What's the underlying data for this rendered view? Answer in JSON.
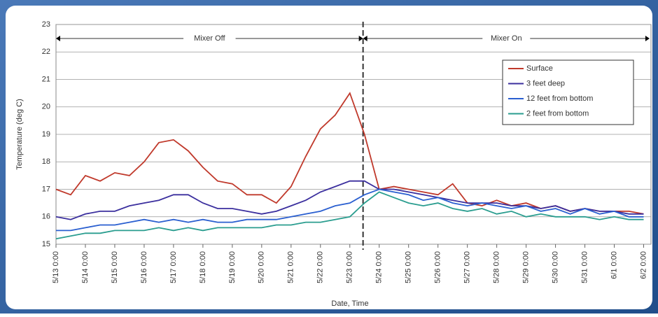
{
  "chart_data": {
    "type": "line",
    "xlabel": "Date, Time",
    "ylabel": "Temperature (deg C)",
    "annotations": [
      {
        "text": "Mixer Off",
        "x0": 0,
        "x1": 10.45
      },
      {
        "text": "Mixer On",
        "x0": 10.45,
        "x1": 20.2
      }
    ],
    "x": [
      0,
      0.5,
      1,
      1.5,
      2,
      2.5,
      3,
      3.5,
      4,
      4.5,
      5,
      5.5,
      6,
      6.5,
      7,
      7.5,
      8,
      8.5,
      9,
      9.5,
      10,
      10.5,
      11,
      11.5,
      12,
      12.5,
      13,
      13.5,
      14,
      14.5,
      15,
      15.5,
      16,
      16.5,
      17,
      17.5,
      18,
      18.5,
      19,
      19.5,
      20
    ],
    "series": [
      {
        "name": "Surface",
        "color": "#c0392b",
        "values": [
          17.0,
          16.8,
          17.5,
          17.3,
          17.6,
          17.5,
          18.0,
          18.7,
          18.8,
          18.4,
          17.8,
          17.3,
          17.2,
          16.8,
          16.8,
          16.5,
          17.1,
          18.2,
          19.2,
          19.7,
          20.5,
          19.0,
          17.0,
          17.1,
          17.0,
          16.9,
          16.8,
          17.2,
          16.5,
          16.4,
          16.6,
          16.4,
          16.5,
          16.3,
          16.4,
          16.2,
          16.3,
          16.2,
          16.2,
          16.2,
          16.1
        ]
      },
      {
        "name": "3 feet deep",
        "color": "#3b2f9e",
        "values": [
          16.0,
          15.9,
          16.1,
          16.2,
          16.2,
          16.4,
          16.5,
          16.6,
          16.8,
          16.8,
          16.5,
          16.3,
          16.3,
          16.2,
          16.1,
          16.2,
          16.4,
          16.6,
          16.9,
          17.1,
          17.3,
          17.3,
          17.0,
          17.0,
          16.9,
          16.8,
          16.7,
          16.6,
          16.5,
          16.5,
          16.5,
          16.4,
          16.4,
          16.3,
          16.4,
          16.2,
          16.3,
          16.2,
          16.2,
          16.1,
          16.1
        ]
      },
      {
        "name": "12 feet from bottom",
        "color": "#2a5fd0",
        "values": [
          15.5,
          15.5,
          15.6,
          15.7,
          15.7,
          15.8,
          15.9,
          15.8,
          15.9,
          15.8,
          15.9,
          15.8,
          15.8,
          15.9,
          15.9,
          15.9,
          16.0,
          16.1,
          16.2,
          16.4,
          16.5,
          16.8,
          17.0,
          16.9,
          16.8,
          16.6,
          16.7,
          16.5,
          16.4,
          16.5,
          16.4,
          16.3,
          16.4,
          16.2,
          16.3,
          16.1,
          16.3,
          16.1,
          16.2,
          16.0,
          16.0
        ]
      },
      {
        "name": "2 feet from bottom",
        "color": "#2a9d8f",
        "values": [
          15.2,
          15.3,
          15.4,
          15.4,
          15.5,
          15.5,
          15.5,
          15.6,
          15.5,
          15.6,
          15.5,
          15.6,
          15.6,
          15.6,
          15.6,
          15.7,
          15.7,
          15.8,
          15.8,
          15.9,
          16.0,
          16.5,
          16.9,
          16.7,
          16.5,
          16.4,
          16.5,
          16.3,
          16.2,
          16.3,
          16.1,
          16.2,
          16.0,
          16.1,
          16.0,
          16.0,
          16.0,
          15.9,
          16.0,
          15.9,
          15.9
        ]
      }
    ],
    "xlim": [
      0,
      20.25
    ],
    "xticks": [
      {
        "value": 0,
        "label": "5/13 0:00"
      },
      {
        "value": 1,
        "label": "5/14 0:00"
      },
      {
        "value": 2,
        "label": "5/15 0:00"
      },
      {
        "value": 3,
        "label": "5/16 0:00"
      },
      {
        "value": 4,
        "label": "5/17 0:00"
      },
      {
        "value": 5,
        "label": "5/18 0:00"
      },
      {
        "value": 6,
        "label": "5/19 0:00"
      },
      {
        "value": 7,
        "label": "5/20 0:00"
      },
      {
        "value": 8,
        "label": "5/21 0:00"
      },
      {
        "value": 9,
        "label": "5/22 0:00"
      },
      {
        "value": 10,
        "label": "5/23 0:00"
      },
      {
        "value": 11,
        "label": "5/24 0:00"
      },
      {
        "value": 12,
        "label": "5/25 0:00"
      },
      {
        "value": 13,
        "label": "5/26 0:00"
      },
      {
        "value": 14,
        "label": "5/27 0:00"
      },
      {
        "value": 15,
        "label": "5/28 0:00"
      },
      {
        "value": 16,
        "label": "5/29 0:00"
      },
      {
        "value": 17,
        "label": "5/30 0:00"
      },
      {
        "value": 18,
        "label": "5/31 0:00"
      },
      {
        "value": 19,
        "label": "6/1 0:00"
      },
      {
        "value": 20,
        "label": "6/2 0:00"
      }
    ],
    "ylim": [
      15,
      23
    ],
    "yticks": [
      15,
      16,
      17,
      18,
      19,
      20,
      21,
      22,
      23
    ],
    "grid": true
  }
}
